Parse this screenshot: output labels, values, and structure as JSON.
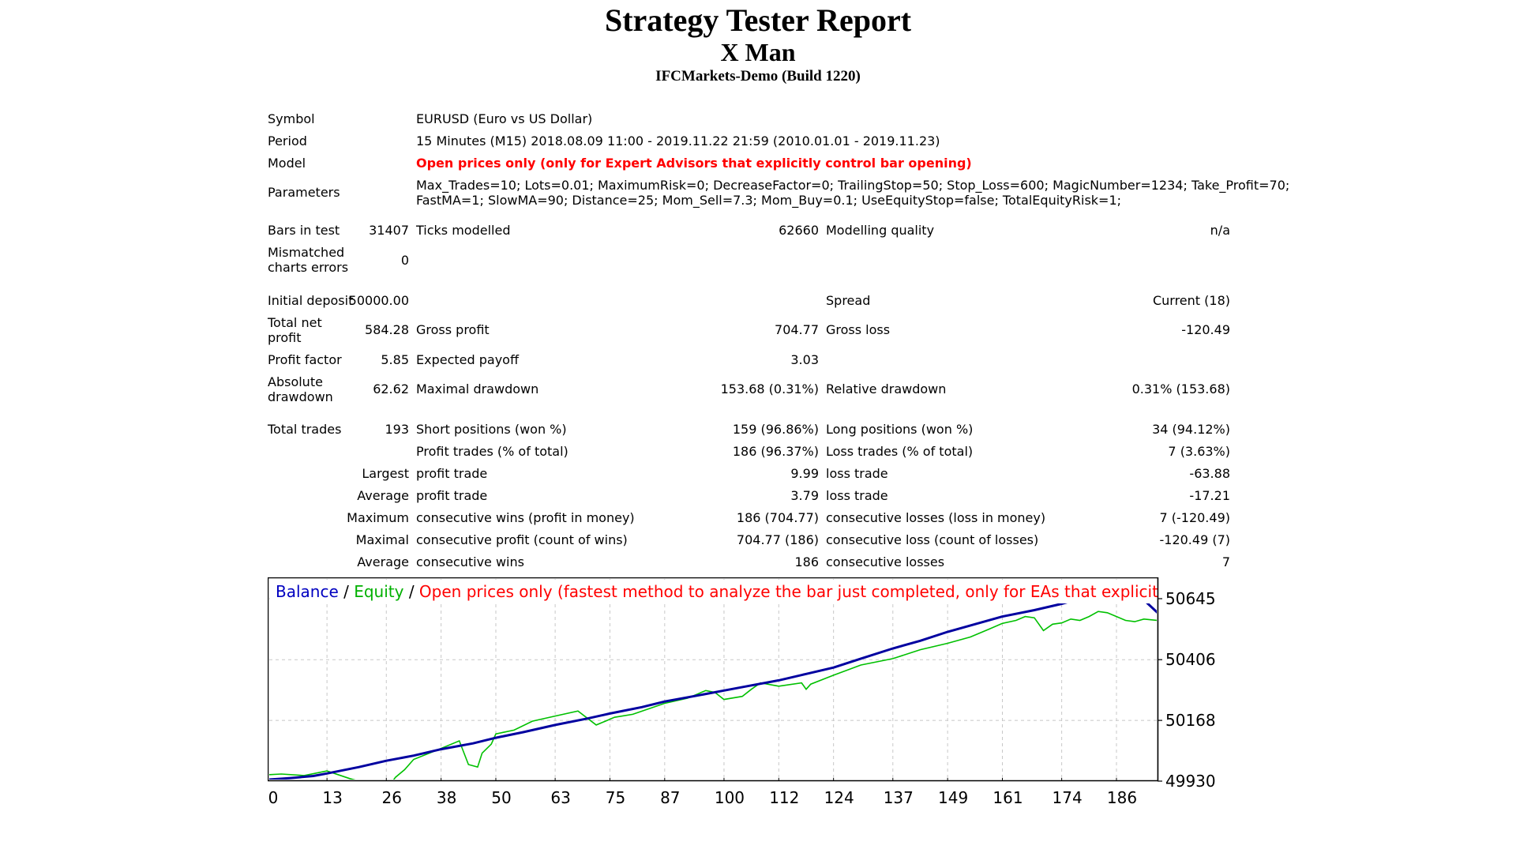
{
  "report": {
    "title": "Strategy Tester Report",
    "expert": "X Man",
    "server": "IFCMarkets-Demo (Build 1220)"
  },
  "info": {
    "symbol_label": "Symbol",
    "symbol_value": "EURUSD (Euro vs US Dollar)",
    "period_label": "Period",
    "period_value": "15 Minutes (M15) 2018.08.09 11:00 - 2019.11.22 21:59 (2010.01.01 - 2019.11.23)",
    "model_label": "Model",
    "model_value": "Open prices only (only for Expert Advisors that explicitly control bar opening)",
    "parameters_label": "Parameters",
    "parameters_line1": "Max_Trades=10; Lots=0.01; MaximumRisk=0; DecreaseFactor=0; TrailingStop=50; Stop_Loss=600; MagicNumber=1234; Take_Profit=70;",
    "parameters_line2": "FastMA=1; SlowMA=90; Distance=25; Mom_Sell=7.3; Mom_Buy=0.1; UseEquityStop=false; TotalEquityRisk=1;"
  },
  "quality": {
    "bars_label": "Bars in test",
    "bars_value": "31407",
    "ticks_label": "Ticks modelled",
    "ticks_value": "62660",
    "modelling_label": "Modelling quality",
    "modelling_value": "n/a",
    "mismatched_label_1": "Mismatched",
    "mismatched_label_2": "charts errors",
    "mismatched_value": "0"
  },
  "results": {
    "initial_deposit_label": "Initial deposit",
    "initial_deposit_value": "50000.00",
    "spread_label": "Spread",
    "spread_value": "Current (18)",
    "net_profit_label_1": "Total net",
    "net_profit_label_2": "profit",
    "net_profit_value": "584.28",
    "gross_profit_label": "Gross profit",
    "gross_profit_value": "704.77",
    "gross_loss_label": "Gross loss",
    "gross_loss_value": "-120.49",
    "profit_factor_label": "Profit factor",
    "profit_factor_value": "5.85",
    "expected_payoff_label": "Expected payoff",
    "expected_payoff_value": "3.03",
    "abs_dd_label_1": "Absolute",
    "abs_dd_label_2": "drawdown",
    "abs_dd_value": "62.62",
    "max_dd_label": "Maximal drawdown",
    "max_dd_value": "153.68 (0.31%)",
    "rel_dd_label": "Relative drawdown",
    "rel_dd_value": "0.31% (153.68)"
  },
  "trades": {
    "total_label": "Total trades",
    "total_value": "193",
    "short_label": "Short positions (won %)",
    "short_value": "159 (96.86%)",
    "long_label": "Long positions (won %)",
    "long_value": "34 (94.12%)",
    "profit_trades_label": "Profit trades (% of total)",
    "profit_trades_value": "186 (96.37%)",
    "loss_trades_label": "Loss trades (% of total)",
    "loss_trades_value": "7 (3.63%)",
    "largest_label": "Largest",
    "largest_profit_label": "profit trade",
    "largest_profit_value": "9.99",
    "largest_loss_label": "loss trade",
    "largest_loss_value": "-63.88",
    "average_label": "Average",
    "average_profit_label": "profit trade",
    "average_profit_value": "3.79",
    "average_loss_label": "loss trade",
    "average_loss_value": "-17.21",
    "maximum_label": "Maximum",
    "max_wins_label": "consecutive wins (profit in money)",
    "max_wins_value": "186 (704.77)",
    "max_losses_label": "consecutive losses (loss in money)",
    "max_losses_value": "7 (-120.49)",
    "maximal_label": "Maximal",
    "maximal_profit_label": "consecutive profit (count of wins)",
    "maximal_profit_value": "704.77 (186)",
    "maximal_loss_label": "consecutive loss (count of losses)",
    "maximal_loss_value": "-120.49 (7)",
    "average2_label": "Average",
    "avg_wins_label": "consecutive wins",
    "avg_wins_value": "186",
    "avg_losses_label": "consecutive losses",
    "avg_losses_value": "7"
  },
  "chart_data": {
    "type": "line",
    "legend": {
      "balance": "Balance",
      "sep1": " / ",
      "equity": "Equity",
      "sep2": " / ",
      "model": "Open prices only (fastest method to analyze the bar just completed, only for EAs that explicitly control b"
    },
    "colors": {
      "balance": "#0000a0",
      "equity": "#00c000",
      "model": "#ff0000",
      "legend_balance": "#0000c0",
      "legend_equity": "#00b000"
    },
    "x_ticks": [
      0,
      13,
      26,
      38,
      50,
      63,
      75,
      87,
      100,
      112,
      124,
      137,
      149,
      161,
      174,
      186
    ],
    "y_ticks": [
      49930,
      50168,
      50406,
      50645
    ],
    "xlim": [
      0,
      195
    ],
    "ylim": [
      49930,
      50645
    ],
    "series": [
      {
        "name": "Balance",
        "x": [
          0,
          5,
          10,
          13,
          20,
          26,
          32,
          38,
          45,
          50,
          56,
          63,
          70,
          75,
          82,
          87,
          94,
          100,
          106,
          112,
          118,
          124,
          130,
          137,
          143,
          149,
          155,
          161,
          168,
          174,
          180,
          186,
          190,
          192,
          195
        ],
        "y": [
          49936,
          49942,
          49950,
          49960,
          49985,
          50010,
          50030,
          50055,
          50078,
          50100,
          50122,
          50150,
          50175,
          50195,
          50220,
          50242,
          50265,
          50285,
          50305,
          50325,
          50350,
          50375,
          50410,
          50450,
          50480,
          50515,
          50545,
          50575,
          50600,
          50625,
          50655,
          50665,
          50665,
          50640,
          50590
        ]
      },
      {
        "name": "Equity",
        "x": [
          0,
          3,
          8,
          13,
          18,
          22,
          24,
          26,
          28,
          30,
          32,
          38,
          42,
          44,
          46,
          47,
          49,
          50,
          54,
          58,
          63,
          68,
          72,
          74,
          76,
          80,
          87,
          92,
          94,
          96,
          98,
          100,
          104,
          106,
          108,
          112,
          117,
          118,
          119,
          124,
          130,
          137,
          143,
          149,
          154,
          156,
          158,
          161,
          164,
          166,
          168,
          170,
          172,
          174,
          176,
          178,
          180,
          182,
          184,
          186,
          188,
          190,
          192,
          195
        ],
        "y": [
          49955,
          49958,
          49952,
          49970,
          49940,
          49920,
          49880,
          49895,
          49945,
          49975,
          50015,
          50058,
          50088,
          49995,
          49985,
          50040,
          50075,
          50115,
          50130,
          50165,
          50185,
          50205,
          50150,
          50165,
          50180,
          50192,
          50235,
          50255,
          50270,
          50285,
          50278,
          50250,
          50262,
          50290,
          50315,
          50302,
          50315,
          50290,
          50310,
          50345,
          50385,
          50410,
          50445,
          50470,
          50495,
          50510,
          50525,
          50548,
          50560,
          50575,
          50570,
          50520,
          50545,
          50550,
          50565,
          50560,
          50575,
          50595,
          50590,
          50575,
          50560,
          50555,
          50565,
          50560
        ]
      }
    ]
  }
}
